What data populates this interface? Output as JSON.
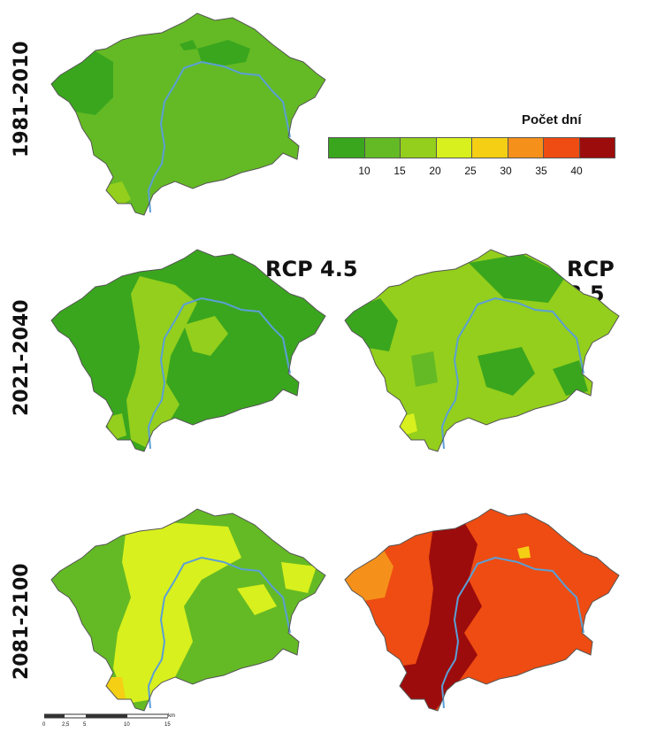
{
  "rows": [
    {
      "period": "1981-2010"
    },
    {
      "period": "2021-2040"
    },
    {
      "period": "2081-2100"
    }
  ],
  "scenarios": {
    "rcp45": "RCP 4.5",
    "rcp85": "RCP 8.5"
  },
  "legend": {
    "title": "Počet dní",
    "colors": [
      "#3aa61e",
      "#64ba24",
      "#93cf1c",
      "#d8f01d",
      "#f5cf14",
      "#f5901a",
      "#ee4c12",
      "#9d0c0c"
    ],
    "ticks": [
      "10",
      "15",
      "20",
      "25",
      "30",
      "35",
      "40"
    ]
  },
  "scale_bar": {
    "labels": [
      "0",
      "2,5",
      "5",
      "10",
      "15"
    ],
    "unit": "km"
  },
  "map_colors": {
    "dark_green": "#3aa61e",
    "green": "#64ba24",
    "light_green": "#93cf1c",
    "yellow_green": "#d8f01d",
    "yellow": "#f5cf14",
    "orange": "#f5901a",
    "red_orange": "#ee4c12",
    "dark_red": "#9d0c0c",
    "river": "#5b9fd6",
    "border": "#555555"
  }
}
